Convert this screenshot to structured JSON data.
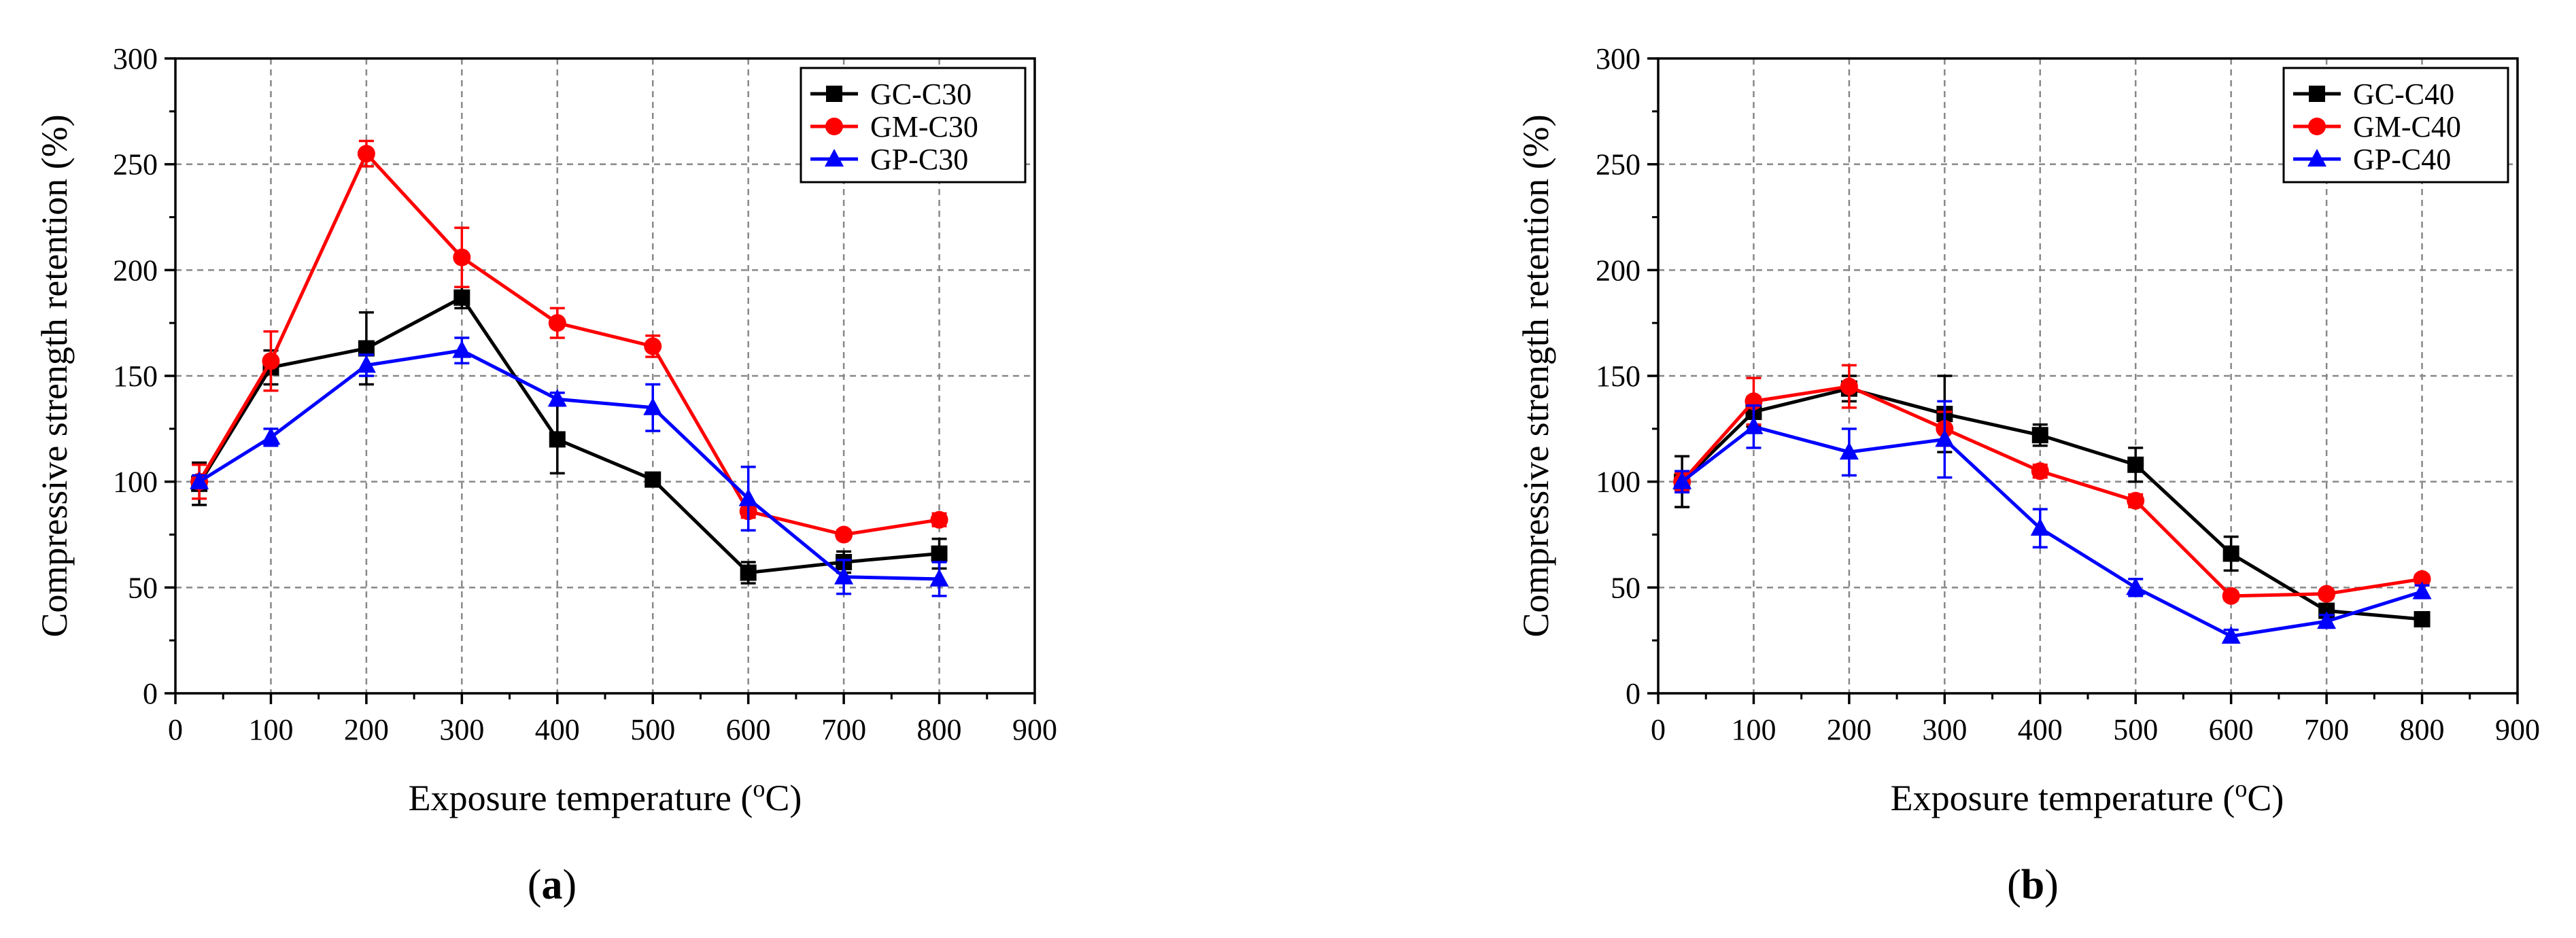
{
  "chart_data": [
    {
      "type": "line",
      "panel": "a",
      "caption_letter": "a",
      "xlabel_text": "Exposure temperature (",
      "xlabel_super": "o",
      "xlabel_unit": "C)",
      "ylabel": "Compressive strength retention (%)",
      "xlim": [
        0,
        900
      ],
      "ylim": [
        0,
        300
      ],
      "xticks": [
        0,
        100,
        200,
        300,
        400,
        500,
        600,
        700,
        800,
        900
      ],
      "yticks": [
        0,
        50,
        100,
        150,
        200,
        250,
        300
      ],
      "grid": true,
      "legend_position": "top-right",
      "x": [
        25,
        100,
        200,
        300,
        400,
        500,
        600,
        700,
        800
      ],
      "series": [
        {
          "name": "GC-C30",
          "color": "#000000",
          "marker": "square",
          "values": [
            99,
            154,
            163,
            187,
            120,
            101,
            57,
            62,
            66
          ],
          "errors": [
            10,
            8,
            17,
            5,
            16,
            3,
            5,
            5,
            7
          ]
        },
        {
          "name": "GM-C30",
          "color": "#ff0000",
          "marker": "circle",
          "values": [
            100,
            157,
            255,
            206,
            175,
            164,
            86,
            75,
            82
          ],
          "errors": [
            8,
            14,
            6,
            14,
            7,
            5,
            3,
            2,
            3
          ]
        },
        {
          "name": "GP-C30",
          "color": "#0000ff",
          "marker": "triangle",
          "values": [
            100,
            121,
            155,
            162,
            139,
            135,
            92,
            55,
            54
          ],
          "errors": [
            3,
            4,
            5,
            6,
            3,
            11,
            15,
            8,
            8
          ]
        }
      ]
    },
    {
      "type": "line",
      "panel": "b",
      "caption_letter": "b",
      "xlabel_text": "Exposure temperature (",
      "xlabel_super": "o",
      "xlabel_unit": "C)",
      "ylabel": "Compressive strength retention (%)",
      "xlim": [
        0,
        900
      ],
      "ylim": [
        0,
        300
      ],
      "xticks": [
        0,
        100,
        200,
        300,
        400,
        500,
        600,
        700,
        800,
        900
      ],
      "yticks": [
        0,
        50,
        100,
        150,
        200,
        250,
        300
      ],
      "grid": true,
      "legend_position": "top-right",
      "x": [
        25,
        100,
        200,
        300,
        400,
        500,
        600,
        700,
        800
      ],
      "series": [
        {
          "name": "GC-C40",
          "color": "#000000",
          "marker": "square",
          "values": [
            100,
            133,
            144,
            132,
            122,
            108,
            66,
            39,
            35
          ],
          "errors": [
            12,
            7,
            6,
            18,
            5,
            8,
            8,
            3,
            3
          ]
        },
        {
          "name": "GM-C40",
          "color": "#ff0000",
          "marker": "circle",
          "values": [
            100,
            138,
            145,
            125,
            105,
            91,
            46,
            47,
            54
          ],
          "errors": [
            4,
            11,
            10,
            8,
            3,
            3,
            2,
            2,
            2
          ]
        },
        {
          "name": "GP-C40",
          "color": "#0000ff",
          "marker": "triangle",
          "values": [
            100,
            126,
            114,
            120,
            78,
            50,
            27,
            34,
            48
          ],
          "errors": [
            5,
            10,
            11,
            18,
            9,
            4,
            3,
            3,
            3
          ]
        }
      ]
    }
  ]
}
